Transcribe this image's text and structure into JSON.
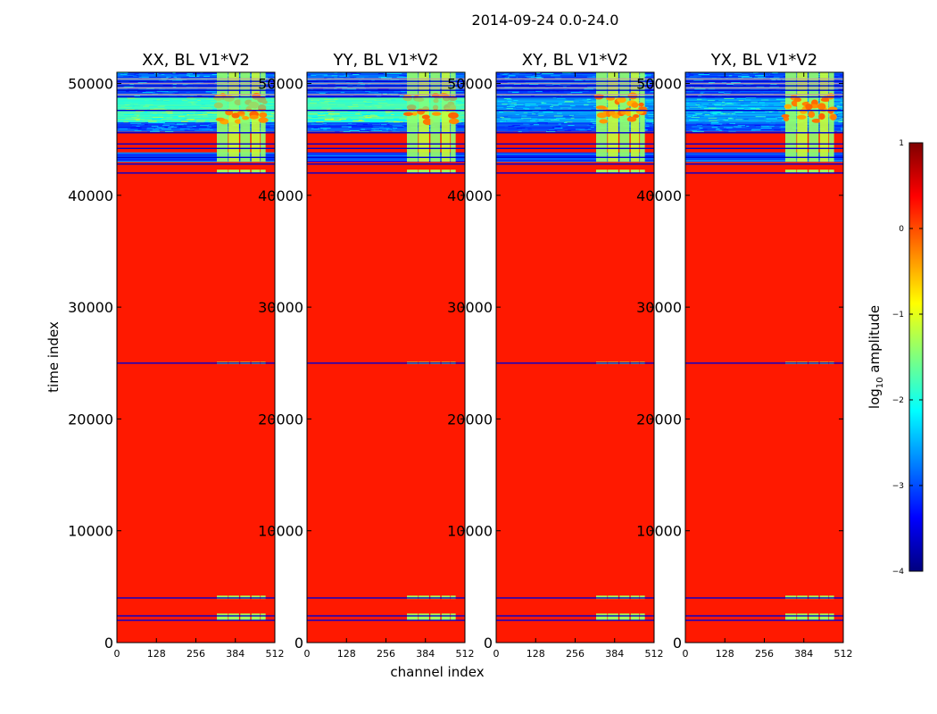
{
  "figure_title": "2014-09-24 0.0-24.0",
  "chart_data": [
    {
      "type": "heatmap",
      "title": "XX, BL V1*V2",
      "xlabel": "",
      "ylabel": "time index",
      "xlim": [
        0,
        512
      ],
      "ylim": [
        0,
        51000
      ],
      "xticks": [
        0,
        128,
        256,
        384,
        512
      ],
      "yticks": [
        0,
        10000,
        20000,
        30000,
        40000,
        50000
      ],
      "dominant_value": 0.25,
      "active_channel_range": [
        324,
        482
      ],
      "active_time_range": [
        43000,
        51000
      ]
    },
    {
      "type": "heatmap",
      "title": "YY, BL V1*V2",
      "xlabel": "channel index",
      "ylabel": "",
      "xlim": [
        0,
        512
      ],
      "ylim": [
        0,
        51000
      ],
      "xticks": [
        0,
        128,
        256,
        384,
        512
      ],
      "yticks": [
        0,
        10000,
        20000,
        30000,
        40000,
        50000
      ],
      "dominant_value": 0.25,
      "active_channel_range": [
        324,
        482
      ],
      "active_time_range": [
        43000,
        51000
      ]
    },
    {
      "type": "heatmap",
      "title": "XY, BL V1*V2",
      "xlabel": "",
      "ylabel": "",
      "xlim": [
        0,
        512
      ],
      "ylim": [
        0,
        51000
      ],
      "xticks": [
        0,
        128,
        256,
        384,
        512
      ],
      "yticks": [
        0,
        10000,
        20000,
        30000,
        40000,
        50000
      ],
      "dominant_value": 0.25,
      "active_channel_range": [
        324,
        482
      ],
      "active_time_range": [
        43000,
        51000
      ]
    },
    {
      "type": "heatmap",
      "title": "YX, BL V1*V2",
      "xlabel": "",
      "ylabel": "",
      "xlim": [
        0,
        512
      ],
      "ylim": [
        0,
        51000
      ],
      "xticks": [
        0,
        128,
        256,
        384,
        512
      ],
      "yticks": [
        0,
        10000,
        20000,
        30000,
        40000,
        50000
      ],
      "dominant_value": 0.25,
      "active_channel_range": [
        324,
        482
      ],
      "active_time_range": [
        43000,
        51000
      ]
    }
  ],
  "colorbar": {
    "label_base": "log",
    "label_sub": "10",
    "label_rest": " amplitude",
    "range": [
      -4,
      1
    ],
    "ticks": [
      {
        "value": 1,
        "label": "1"
      },
      {
        "value": 0,
        "label": "0"
      },
      {
        "value": -1,
        "label": "−1"
      },
      {
        "value": -2,
        "label": "−2"
      },
      {
        "value": -3,
        "label": "−3"
      },
      {
        "value": -4,
        "label": "−4"
      }
    ],
    "colors": [
      "#00007f",
      "#0000ff",
      "#007fff",
      "#00ffff",
      "#7fff7f",
      "#ffff00",
      "#ff7f00",
      "#ff0000",
      "#7f0000"
    ]
  },
  "horizontal_lines_time": [
    2000,
    2400,
    4000,
    25000,
    42000,
    42800,
    43400,
    44200,
    44600,
    45600,
    47600,
    48800,
    49400,
    49800,
    50200
  ]
}
